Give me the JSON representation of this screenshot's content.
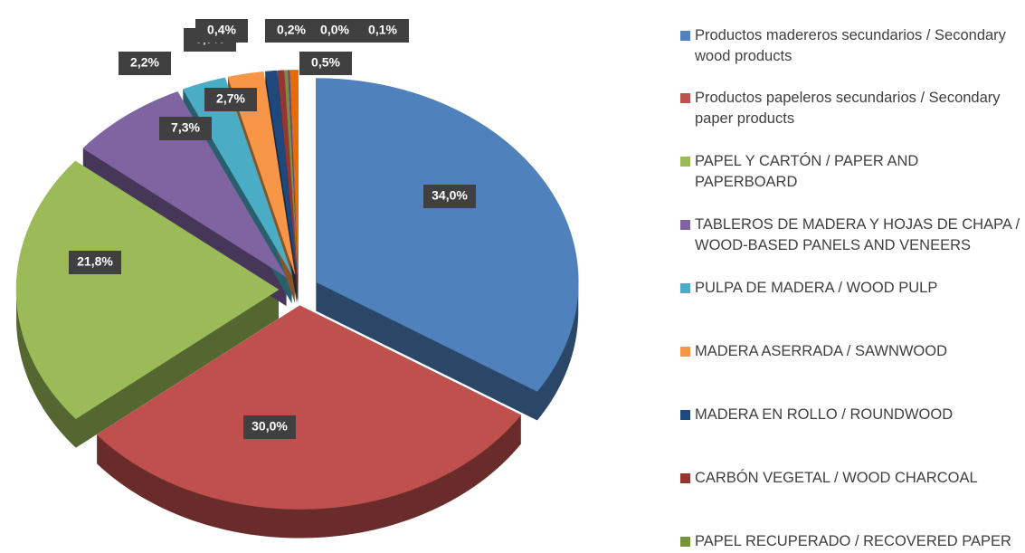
{
  "chart_data": {
    "type": "pie",
    "categories": [
      "Productos madereros secundarios / Secondary wood products",
      "Productos papeleros secundarios / Secondary paper products",
      "PAPEL Y CARTÓN / PAPER AND PAPERBOARD",
      "TABLEROS DE MADERA Y HOJAS DE CHAPA / WOOD-BASED PANELS AND VENEERS",
      "PULPA DE MADERA / WOOD PULP",
      "MADERA ASERRADA / SAWNWOOD",
      "MADERA EN ROLLO / ROUNDWOOD",
      "CARBÓN VEGETAL / WOOD CHARCOAL",
      "PAPEL RECUPERADO / RECOVERED PAPER",
      null,
      null,
      null
    ],
    "values": [
      34.0,
      30.0,
      21.8,
      7.3,
      2.7,
      2.2,
      0.7,
      0.4,
      0.2,
      0.0,
      0.1,
      0.5
    ],
    "value_labels": [
      "34,0%",
      "30,0%",
      "21,8%",
      "7,3%",
      "2,7%",
      "2,2%",
      "0,7%",
      "0,4%",
      "0,2%",
      "0,0%",
      "0,1%",
      "0,5%"
    ],
    "colors": [
      "#4f81bd",
      "#c0504d",
      "#9bbb59",
      "#8064a2",
      "#4bacc6",
      "#f79646",
      "#1f497d",
      "#943634",
      "#76923c",
      "#d99694",
      "#604a7b",
      "#e46c0a"
    ],
    "legend": "right"
  }
}
